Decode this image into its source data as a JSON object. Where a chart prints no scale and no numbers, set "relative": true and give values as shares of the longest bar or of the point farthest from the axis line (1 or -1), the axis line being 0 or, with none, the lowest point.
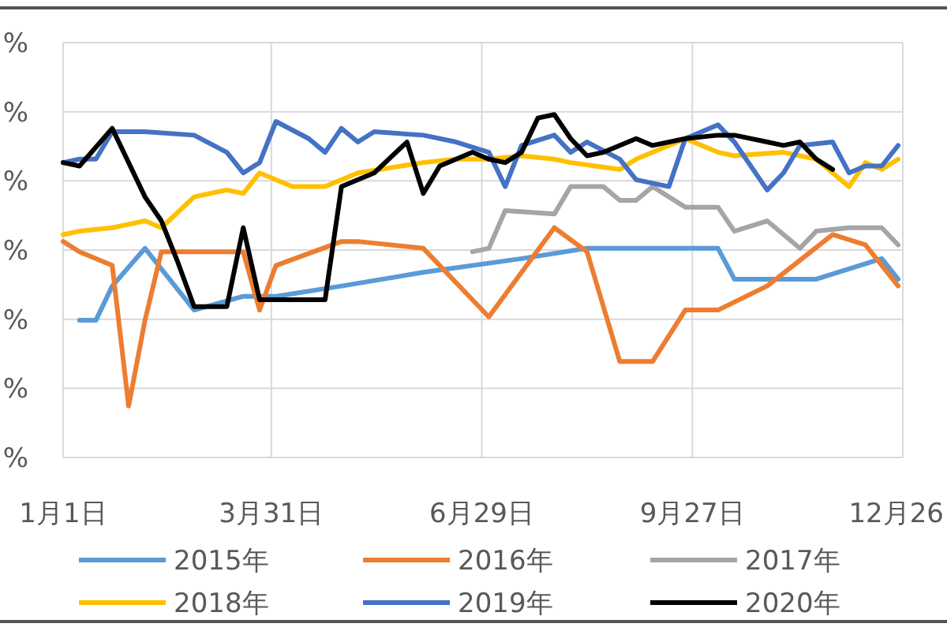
{
  "chart_data": {
    "type": "line",
    "relative": true,
    "grid": true,
    "legend": "bottom",
    "xlim": [
      "--01-01",
      "--12-26"
    ],
    "xticks": [
      {
        "value": "--01-01",
        "label": "1月1日"
      },
      {
        "value": "--03-31",
        "label": "3月31日"
      },
      {
        "value": "--06-29",
        "label": "6月29日"
      },
      {
        "value": "--09-27",
        "label": "9月27日"
      },
      {
        "value": "--12-26",
        "label": "12月26"
      }
    ],
    "annotations": [
      "%",
      "%",
      "%",
      "%",
      "%",
      "%",
      "%"
    ],
    "series": [
      {
        "name": "2015年",
        "color": "#5b9bd5",
        "x": [
          "--01-08",
          "--01-15",
          "--01-22",
          "--02-05",
          "--02-26",
          "--03-19",
          "--04-02",
          "--04-30",
          "--06-04",
          "--07-16",
          "--08-13",
          "--10-08",
          "--10-15",
          "--11-19",
          "--12-17",
          "--12-24"
        ],
        "values": [
          0.4,
          0.4,
          0.5,
          0.61,
          0.43,
          0.47,
          0.47,
          0.5,
          0.54,
          0.58,
          0.61,
          0.61,
          0.52,
          0.52,
          0.58,
          0.52
        ]
      },
      {
        "name": "2016年",
        "color": "#ed7d31",
        "x": [
          "--01-01",
          "--01-08",
          "--01-22",
          "--01-29",
          "--02-05",
          "--02-12",
          "--03-19",
          "--03-26",
          "--04-02",
          "--04-30",
          "--05-07",
          "--06-04",
          "--07-02",
          "--07-30",
          "--08-13",
          "--08-27",
          "--09-10",
          "--09-24",
          "--10-08",
          "--10-29",
          "--11-26",
          "--12-10",
          "--12-24"
        ],
        "values": [
          0.63,
          0.6,
          0.56,
          0.15,
          0.4,
          0.6,
          0.6,
          0.43,
          0.56,
          0.63,
          0.63,
          0.61,
          0.41,
          0.67,
          0.6,
          0.28,
          0.28,
          0.43,
          0.43,
          0.5,
          0.65,
          0.62,
          0.5
        ]
      },
      {
        "name": "2017年",
        "color": "#a5a5a5",
        "x": [
          "--06-25",
          "--07-02",
          "--07-09",
          "--07-30",
          "--08-06",
          "--08-20",
          "--08-27",
          "--09-03",
          "--09-10",
          "--09-24",
          "--10-08",
          "--10-15",
          "--10-29",
          "--11-12",
          "--11-19",
          "--12-03",
          "--12-17",
          "--12-24"
        ],
        "values": [
          0.6,
          0.61,
          0.72,
          0.71,
          0.79,
          0.79,
          0.75,
          0.75,
          0.79,
          0.73,
          0.73,
          0.66,
          0.69,
          0.61,
          0.66,
          0.67,
          0.67,
          0.62
        ]
      },
      {
        "name": "2018年",
        "color": "#ffc000",
        "x": [
          "--01-01",
          "--01-08",
          "--01-22",
          "--02-05",
          "--02-12",
          "--02-26",
          "--03-12",
          "--03-19",
          "--03-26",
          "--04-09",
          "--04-23",
          "--05-07",
          "--06-04",
          "--06-18",
          "--07-02",
          "--07-16",
          "--07-30",
          "--08-06",
          "--08-27",
          "--09-03",
          "--09-24",
          "--10-08",
          "--10-15",
          "--11-05",
          "--11-19",
          "--11-26",
          "--12-03",
          "--12-10",
          "--12-17",
          "--12-24"
        ],
        "values": [
          0.65,
          0.66,
          0.67,
          0.69,
          0.67,
          0.76,
          0.78,
          0.77,
          0.83,
          0.79,
          0.79,
          0.83,
          0.86,
          0.87,
          0.87,
          0.88,
          0.87,
          0.86,
          0.84,
          0.87,
          0.93,
          0.89,
          0.88,
          0.89,
          0.87,
          0.83,
          0.79,
          0.86,
          0.84,
          0.87
        ]
      },
      {
        "name": "2019年",
        "color": "#4472c4",
        "x": [
          "--01-01",
          "--01-08",
          "--01-15",
          "--01-22",
          "--02-05",
          "--02-26",
          "--03-12",
          "--03-19",
          "--03-26",
          "--04-02",
          "--04-16",
          "--04-23",
          "--04-30",
          "--05-07",
          "--05-14",
          "--06-04",
          "--06-18",
          "--07-02",
          "--07-09",
          "--07-16",
          "--07-30",
          "--08-06",
          "--08-13",
          "--08-27",
          "--09-03",
          "--09-17",
          "--09-24",
          "--10-08",
          "--10-15",
          "--10-29",
          "--11-05",
          "--11-12",
          "--11-26",
          "--12-03",
          "--12-10",
          "--12-17",
          "--12-24"
        ],
        "values": [
          0.86,
          0.87,
          0.87,
          0.95,
          0.95,
          0.94,
          0.89,
          0.83,
          0.86,
          0.98,
          0.93,
          0.89,
          0.96,
          0.92,
          0.95,
          0.94,
          0.92,
          0.89,
          0.79,
          0.91,
          0.94,
          0.89,
          0.92,
          0.87,
          0.81,
          0.79,
          0.93,
          0.97,
          0.92,
          0.78,
          0.83,
          0.91,
          0.92,
          0.83,
          0.85,
          0.85,
          0.91
        ]
      },
      {
        "name": "2020年",
        "color": "#000000",
        "x": [
          "--01-01",
          "--01-08",
          "--01-22",
          "--02-05",
          "--02-12",
          "--02-19",
          "--02-26",
          "--03-12",
          "--03-19",
          "--03-26",
          "--04-23",
          "--04-30",
          "--05-14",
          "--05-28",
          "--06-04",
          "--06-11",
          "--06-25",
          "--07-02",
          "--07-09",
          "--07-16",
          "--07-23",
          "--07-30",
          "--08-06",
          "--08-13",
          "--08-20",
          "--09-03",
          "--09-10",
          "--09-24",
          "--10-08",
          "--10-15",
          "--10-29",
          "--11-05",
          "--11-12",
          "--11-19",
          "--11-26"
        ],
        "values": [
          0.86,
          0.85,
          0.96,
          0.76,
          0.69,
          0.57,
          0.44,
          0.44,
          0.67,
          0.46,
          0.46,
          0.79,
          0.83,
          0.92,
          0.77,
          0.85,
          0.89,
          0.87,
          0.86,
          0.89,
          0.99,
          1.0,
          0.93,
          0.88,
          0.89,
          0.93,
          0.91,
          0.93,
          0.94,
          0.94,
          0.92,
          0.91,
          0.92,
          0.87,
          0.84
        ]
      }
    ]
  }
}
